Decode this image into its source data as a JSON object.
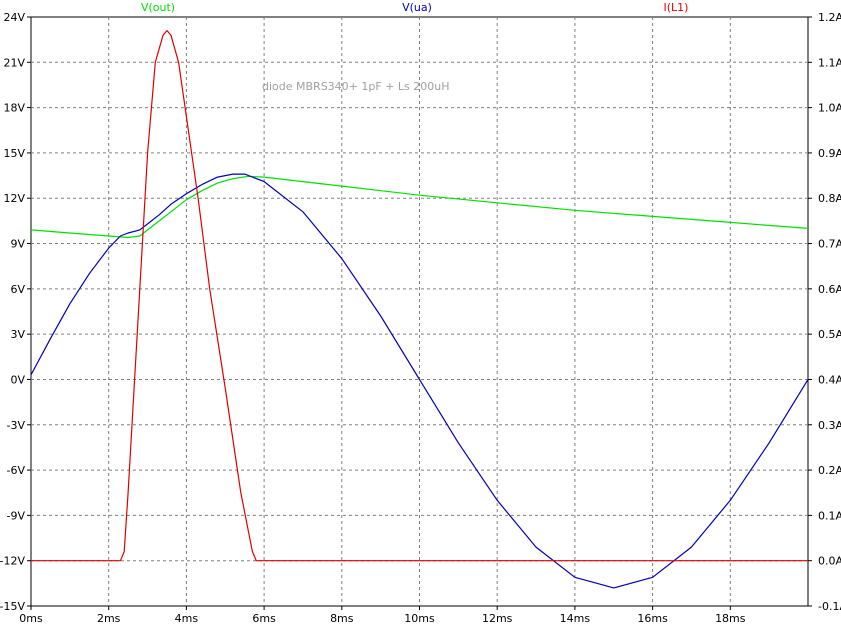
{
  "chart_data": {
    "type": "line",
    "annotation": "diode  MBRS340+ 1pF + Ls 200uH",
    "x_axis": {
      "range": [
        0,
        20
      ],
      "ticks": [
        0,
        2,
        4,
        6,
        8,
        10,
        12,
        14,
        16,
        18
      ],
      "tick_labels": [
        "0ms",
        "2ms",
        "4ms",
        "6ms",
        "8ms",
        "10ms",
        "12ms",
        "14ms",
        "16ms",
        "18ms"
      ]
    },
    "y_left": {
      "range": [
        -15,
        24
      ],
      "ticks": [
        -15,
        -12,
        -9,
        -6,
        -3,
        0,
        3,
        6,
        9,
        12,
        15,
        18,
        21,
        24
      ],
      "tick_labels": [
        "-15V",
        "-12V",
        "-9V",
        "-6V",
        "-3V",
        "0V",
        "3V",
        "6V",
        "9V",
        "12V",
        "15V",
        "18V",
        "21V",
        "24V"
      ]
    },
    "y_right": {
      "range": [
        -0.1,
        1.2
      ],
      "ticks": [
        -0.1,
        0.0,
        0.1,
        0.2,
        0.3,
        0.4,
        0.5,
        0.6,
        0.7,
        0.8,
        0.9,
        1.0,
        1.1,
        1.2
      ],
      "tick_labels": [
        "-0.1A",
        "0.0A",
        "0.1A",
        "0.2A",
        "0.3A",
        "0.4A",
        "0.5A",
        "0.6A",
        "0.7A",
        "0.8A",
        "0.9A",
        "1.0A",
        "1.1A",
        "1.2A"
      ]
    },
    "grid": true,
    "series": [
      {
        "name": "V(out)",
        "axis": "left",
        "color": "#00e000",
        "x": [
          0,
          1,
          2,
          2.5,
          2.8,
          3.0,
          3.3,
          3.6,
          4.0,
          4.4,
          4.8,
          5.2,
          5.6,
          6.0,
          8,
          10,
          12,
          14,
          16,
          18,
          20
        ],
        "y": [
          9.9,
          9.7,
          9.5,
          9.4,
          9.5,
          9.9,
          10.5,
          11.1,
          11.9,
          12.5,
          13.0,
          13.3,
          13.45,
          13.4,
          12.8,
          12.2,
          11.7,
          11.2,
          10.8,
          10.4,
          10.0
        ]
      },
      {
        "name": "V(ua)",
        "axis": "left",
        "color": "#0000c0",
        "x": [
          0,
          0.5,
          1,
          1.5,
          2,
          2.3,
          2.5,
          2.8,
          3.0,
          3.3,
          3.6,
          4.0,
          4.4,
          4.8,
          5.2,
          5.5,
          6,
          7,
          8,
          9,
          10,
          11,
          12,
          13,
          14,
          15,
          16,
          17,
          18,
          19,
          20
        ],
        "y": [
          0.3,
          2.7,
          5.0,
          7.0,
          8.7,
          9.5,
          9.7,
          9.9,
          10.3,
          10.9,
          11.6,
          12.3,
          12.9,
          13.4,
          13.6,
          13.6,
          13.1,
          11.1,
          8.0,
          4.2,
          0.0,
          -4.2,
          -8.0,
          -11.1,
          -13.1,
          -13.8,
          -13.1,
          -11.1,
          -8.0,
          -4.2,
          0.0
        ]
      },
      {
        "name": "I(L1)",
        "axis": "right",
        "color": "#e00000",
        "x": [
          0,
          2.3,
          2.4,
          2.5,
          2.8,
          3.0,
          3.2,
          3.4,
          3.5,
          3.6,
          3.8,
          4.0,
          4.3,
          4.6,
          5.0,
          5.4,
          5.7,
          5.8,
          6.0,
          8,
          10,
          12,
          14,
          16,
          18,
          20
        ],
        "y": [
          0.0,
          0.0,
          0.02,
          0.15,
          0.6,
          0.9,
          1.1,
          1.16,
          1.17,
          1.16,
          1.1,
          0.98,
          0.8,
          0.6,
          0.38,
          0.15,
          0.02,
          0.0,
          0.0,
          0.0,
          0.0,
          0.0,
          0.0,
          0.0,
          0.0,
          0.0
        ]
      }
    ]
  }
}
